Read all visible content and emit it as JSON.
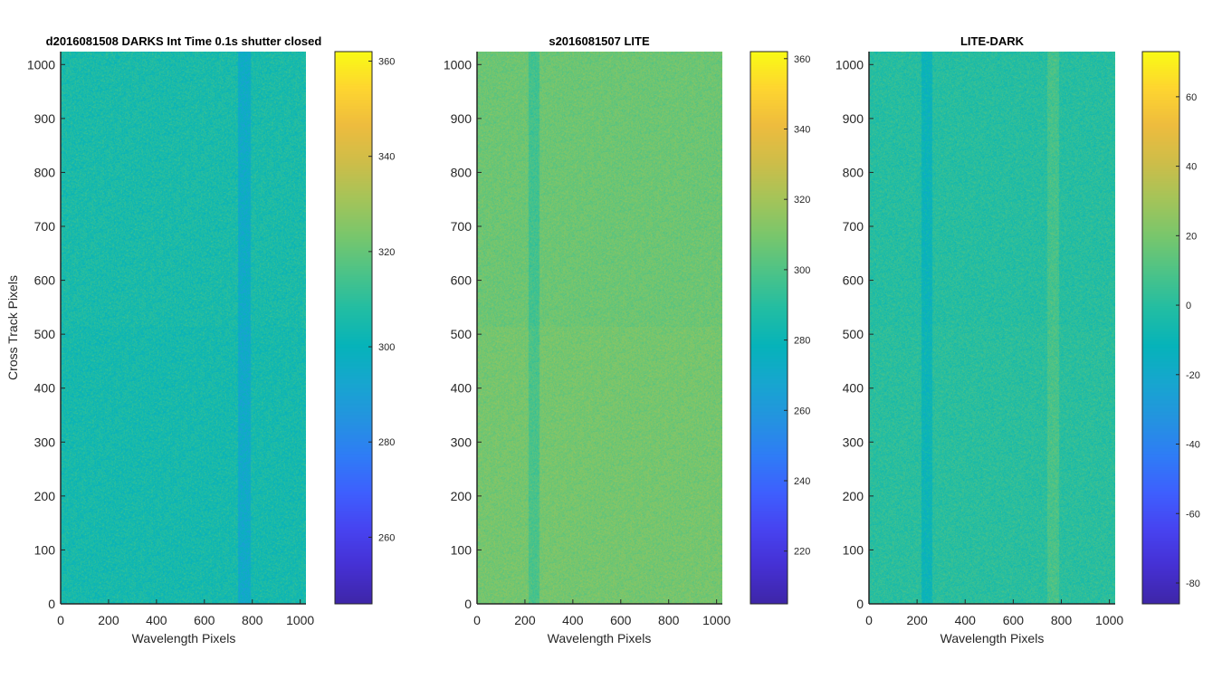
{
  "figure": {
    "background": "#ffffff"
  },
  "colormap": [
    "#3e26a8",
    "#4530d3",
    "#4743f0",
    "#3e5ffe",
    "#2f7cf6",
    "#2493e0",
    "#17a6cf",
    "#06b3ba",
    "#22bda3",
    "#4cc388",
    "#79c66c",
    "#a5c459",
    "#cebd49",
    "#eebc3e",
    "#fed530",
    "#f9fb15"
  ],
  "chart_data": [
    {
      "type": "heatmap",
      "title": "d2016081508  DARKS   Int Time 0.1s   shutter closed",
      "xlabel": "Wavelength Pixels",
      "ylabel": "Cross Track Pixels",
      "xlim": [
        0,
        1024
      ],
      "ylim": [
        0,
        1024
      ],
      "xticks": [
        0,
        200,
        400,
        600,
        800,
        1000
      ],
      "yticks": [
        0,
        100,
        200,
        300,
        400,
        500,
        600,
        700,
        800,
        900,
        1000
      ],
      "clim": [
        246,
        362
      ],
      "cticks": [
        260,
        280,
        300,
        320,
        340,
        360
      ],
      "base_value": 306,
      "noise_amplitude": 5,
      "bands": [
        {
          "x_range": [
            740,
            790
          ],
          "value": 296
        }
      ],
      "row_shift": {
        "y_range": [
          0,
          515
        ],
        "delta": -1
      }
    },
    {
      "type": "heatmap",
      "title": "s2016081507  LITE",
      "xlabel": "Wavelength Pixels",
      "ylabel": "",
      "xlim": [
        0,
        1024
      ],
      "ylim": [
        0,
        1024
      ],
      "xticks": [
        0,
        200,
        400,
        600,
        800,
        1000
      ],
      "yticks": [
        0,
        100,
        200,
        300,
        400,
        500,
        600,
        700,
        800,
        900,
        1000
      ],
      "clim": [
        205,
        362
      ],
      "cticks": [
        220,
        240,
        260,
        280,
        300,
        320,
        340,
        360
      ],
      "base_value": 307,
      "noise_amplitude": 5,
      "bands": [
        {
          "x_range": [
            215,
            260
          ],
          "value": 297
        }
      ],
      "row_shift": {
        "y_range": [
          0,
          515
        ],
        "delta": 2
      }
    },
    {
      "type": "heatmap",
      "title": "LITE-DARK",
      "xlabel": "Wavelength Pixels",
      "ylabel": "",
      "xlim": [
        0,
        1024
      ],
      "ylim": [
        0,
        1024
      ],
      "xticks": [
        0,
        200,
        400,
        600,
        800,
        1000
      ],
      "yticks": [
        0,
        100,
        200,
        300,
        400,
        500,
        600,
        700,
        800,
        900,
        1000
      ],
      "clim": [
        -86,
        73
      ],
      "cticks": [
        -80,
        -60,
        -40,
        -20,
        0,
        20,
        40,
        60
      ],
      "base_value": 0,
      "noise_amplitude": 6,
      "bands": [
        {
          "x_range": [
            215,
            260
          ],
          "value": -11
        },
        {
          "x_range": [
            740,
            790
          ],
          "value": 8
        }
      ],
      "row_shift": {
        "y_range": [
          0,
          515
        ],
        "delta": 1
      }
    }
  ]
}
